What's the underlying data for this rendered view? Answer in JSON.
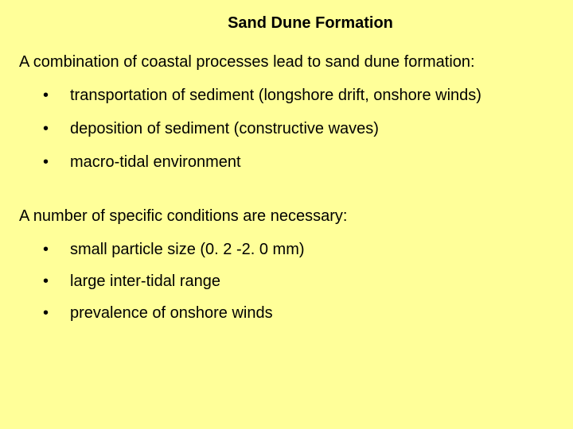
{
  "background_color": "#ffff99",
  "text_color": "#000000",
  "title_fontsize": 20,
  "body_fontsize": 20,
  "title": "Sand Dune Formation",
  "section1": {
    "intro": "A combination of coastal processes lead to sand dune formation:",
    "items": [
      "transportation of sediment (longshore drift, onshore winds)",
      "deposition of sediment (constructive waves)",
      "macro-tidal environment"
    ]
  },
  "section2": {
    "intro": "A number of specific conditions are necessary:",
    "items": [
      "small particle size (0. 2 -2. 0 mm)",
      "large inter-tidal range",
      "prevalence of onshore winds"
    ]
  }
}
